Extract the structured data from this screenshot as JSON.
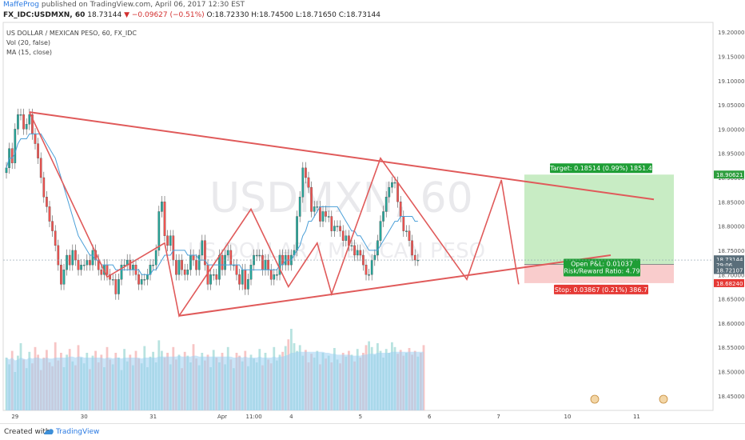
{
  "header": {
    "author": "MaffeProg",
    "published": "published on TradingView.com, April 06, 2017 12:30 EST",
    "symbol": "FX_IDC:USDMXN, 60",
    "price": "18.73144",
    "change": "▼ −0.09627 (−0.51%)",
    "ohlc": "O:18.72330 H:18.74500 L:18.71650 C:18.73144"
  },
  "legend": {
    "title": "US DOLLAR / MEXICAN PESO, 60, FX_IDC",
    "vol": "Vol (20, false)",
    "ma": "MA (15, close)"
  },
  "watermark": {
    "symbol": "USDMXN, 60",
    "name": "US DOLLAR / MEXICAN PESO"
  },
  "price_axis": {
    "ticks": [
      "19.20000",
      "19.15000",
      "19.10000",
      "19.05000",
      "19.00000",
      "18.95000",
      "18.90000",
      "18.85000",
      "18.80000",
      "18.75000",
      "18.70000",
      "18.65000",
      "18.60000",
      "18.55000",
      "18.50000",
      "18.45000"
    ],
    "markers": [
      {
        "label": "18.90621",
        "value": 18.90621,
        "color": "#2e9e3e"
      },
      {
        "label": "18.73144",
        "value": 18.73144,
        "color": "#5a6e7a"
      },
      {
        "label": "29:06",
        "value": 18.7205,
        "color": "#5a6e7a"
      },
      {
        "label": "18.72107",
        "value": 18.7095,
        "color": "#5a6e7a"
      },
      {
        "label": "18.68240",
        "value": 18.6824,
        "color": "#e53935"
      }
    ]
  },
  "time_axis": {
    "ticks": [
      {
        "label": "29",
        "i": 3
      },
      {
        "label": "30",
        "i": 27
      },
      {
        "label": "31",
        "i": 51
      },
      {
        "label": "Apr",
        "i": 75
      },
      {
        "label": "11:00",
        "i": 86
      },
      {
        "label": "4",
        "i": 99
      },
      {
        "label": "5",
        "i": 123
      },
      {
        "label": "6",
        "i": 147
      },
      {
        "label": "7",
        "i": 171
      },
      {
        "label": "10",
        "i": 195
      },
      {
        "label": "11",
        "i": 219
      }
    ]
  },
  "position_tool": {
    "target_label": "Target: 0.18514 (0.99%) 1851.4",
    "open_pl": "Open P&L: 0.01037",
    "risk_reward": "Risk/Reward Ratio: 4.79",
    "stop_label": "Stop: 0.03867 (0.21%) 386.7",
    "entry": 18.72107,
    "target": 18.90621,
    "stop": 18.6824
  },
  "colors": {
    "up": "#26a69a",
    "down": "#ef5350",
    "ma": "#4a9fd8",
    "pattern": "#e05a5a",
    "vol_up": "#b8e3e0",
    "vol_down": "#f7c5c5",
    "vol_ma": "#9dd0f3",
    "target_zone": "#c8ecc4",
    "stop_zone": "#f9cccc"
  },
  "footer": {
    "created_with": "Created with",
    "brand": "TradingView"
  },
  "chart_data": {
    "type": "candlestick",
    "x_axis": "hourly bars, Mar 28 – Apr 6, 2017",
    "ylim": [
      18.42,
      19.22
    ],
    "closes": [
      18.92,
      18.96,
      18.93,
      19.0,
      19.03,
      19.03,
      19.0,
      19.01,
      19.03,
      18.99,
      18.97,
      18.94,
      18.9,
      18.86,
      18.84,
      18.81,
      18.79,
      18.76,
      18.72,
      18.68,
      18.71,
      18.74,
      18.72,
      18.75,
      18.73,
      18.71,
      18.72,
      18.72,
      18.73,
      18.72,
      18.75,
      18.73,
      18.71,
      18.7,
      18.72,
      18.7,
      18.69,
      18.69,
      18.66,
      18.69,
      18.72,
      18.72,
      18.73,
      18.71,
      18.72,
      18.7,
      18.68,
      18.69,
      18.69,
      18.7,
      18.72,
      18.72,
      18.75,
      18.83,
      18.85,
      18.78,
      18.76,
      18.78,
      18.73,
      18.7,
      18.73,
      18.71,
      18.7,
      18.71,
      18.74,
      18.73,
      18.71,
      18.74,
      18.77,
      18.72,
      18.68,
      18.7,
      18.7,
      18.69,
      18.74,
      18.71,
      18.74,
      18.75,
      18.72,
      18.72,
      18.7,
      18.68,
      18.71,
      18.67,
      18.69,
      18.72,
      18.74,
      18.74,
      18.74,
      18.71,
      18.73,
      18.71,
      18.69,
      18.7,
      18.7,
      18.74,
      18.72,
      18.74,
      18.72,
      18.74,
      18.75,
      18.82,
      18.86,
      18.92,
      18.9,
      18.88,
      18.83,
      18.84,
      18.84,
      18.81,
      18.83,
      18.82,
      18.82,
      18.79,
      18.8,
      18.8,
      18.79,
      18.77,
      18.78,
      18.76,
      18.76,
      18.74,
      18.75,
      18.74,
      18.72,
      18.7,
      18.7,
      18.73,
      18.74,
      18.77,
      18.81,
      18.83,
      18.86,
      18.88,
      18.89,
      18.89,
      18.85,
      18.82,
      18.79,
      18.79,
      18.77,
      18.74,
      18.73,
      18.73
    ],
    "volume": [
      0.55,
      0.48,
      0.62,
      0.4,
      0.57,
      0.7,
      0.53,
      0.44,
      0.61,
      0.49,
      0.66,
      0.58,
      0.42,
      0.55,
      0.63,
      0.5,
      0.46,
      0.71,
      0.52,
      0.6,
      0.45,
      0.58,
      0.64,
      0.51,
      0.47,
      0.68,
      0.55,
      0.49,
      0.6,
      0.43,
      0.57,
      0.62,
      0.5,
      0.58,
      0.45,
      0.66,
      0.53,
      0.48,
      0.6,
      0.55,
      0.42,
      0.64,
      0.51,
      0.58,
      0.47,
      0.62,
      0.54,
      0.49,
      0.67,
      0.45,
      0.56,
      0.61,
      0.5,
      0.73,
      0.62,
      0.55,
      0.6,
      0.48,
      0.66,
      0.53,
      0.58,
      0.44,
      0.61,
      0.57,
      0.5,
      0.69,
      0.54,
      0.47,
      0.6,
      0.52,
      0.58,
      0.45,
      0.63,
      0.55,
      0.5,
      0.6,
      0.48,
      0.66,
      0.53,
      0.44,
      0.6,
      0.57,
      0.51,
      0.62,
      0.46,
      0.58,
      0.54,
      0.5,
      0.64,
      0.47,
      0.6,
      0.53,
      0.49,
      0.66,
      0.52,
      0.58,
      0.61,
      0.67,
      0.74,
      0.85,
      0.7,
      0.62,
      0.68,
      0.57,
      0.63,
      0.5,
      0.59,
      0.55,
      0.62,
      0.48,
      0.6,
      0.54,
      0.57,
      0.5,
      0.65,
      0.53,
      0.49,
      0.6,
      0.56,
      0.62,
      0.58,
      0.51,
      0.64,
      0.55,
      0.6,
      0.68,
      0.72,
      0.66,
      0.58,
      0.7,
      0.62,
      0.55,
      0.64,
      0.6,
      0.71,
      0.66,
      0.59,
      0.63,
      0.57,
      0.6,
      0.65,
      0.58,
      0.62,
      0.56,
      0.6,
      0.68
    ],
    "ma_15": [
      18.92,
      18.94,
      18.94,
      18.95,
      18.97,
      18.98,
      18.98,
      18.98,
      18.99,
      18.99,
      18.99,
      18.99,
      18.99,
      18.98,
      18.97,
      18.96,
      18.95,
      18.94,
      18.92,
      18.9,
      18.88,
      18.86,
      18.84,
      18.82,
      18.8,
      18.78,
      18.77,
      18.76,
      18.75,
      18.74,
      18.74,
      18.73,
      18.73,
      18.72,
      18.72,
      18.72,
      18.72,
      18.72,
      18.71,
      18.71,
      18.71,
      18.71,
      18.71,
      18.71,
      18.71,
      18.71,
      18.71,
      18.7,
      18.7,
      18.7,
      18.7,
      18.71,
      18.71,
      18.72,
      18.73,
      18.74,
      18.74,
      18.74,
      18.75,
      18.75,
      18.75,
      18.75,
      18.75,
      18.74,
      18.74,
      18.74,
      18.74,
      18.73,
      18.73,
      18.73,
      18.72,
      18.72,
      18.72,
      18.72,
      18.72,
      18.72,
      18.72,
      18.72,
      18.72,
      18.72,
      18.72,
      18.72,
      18.71,
      18.71,
      18.71,
      18.71,
      18.71,
      18.71,
      18.71,
      18.71,
      18.71,
      18.71,
      18.71,
      18.71,
      18.71,
      18.72,
      18.72,
      18.73,
      18.73,
      18.73,
      18.74,
      18.75,
      18.76,
      18.78,
      18.79,
      18.81,
      18.81,
      18.82,
      18.83,
      18.84,
      18.84,
      18.84,
      18.84,
      18.84,
      18.84,
      18.84,
      18.83,
      18.82,
      18.81,
      18.8,
      18.79,
      18.79,
      18.78,
      18.78,
      18.77,
      18.76,
      18.75,
      18.75,
      18.75,
      18.75,
      18.76,
      18.77,
      18.78,
      18.79,
      18.8,
      18.81,
      18.81,
      18.82,
      18.82,
      18.82,
      18.82,
      18.82,
      18.81,
      18.81
    ],
    "volume_ma": [
      0.55,
      0.53,
      0.55,
      0.52,
      0.53,
      0.55,
      0.54,
      0.53,
      0.55,
      0.54,
      0.55,
      0.55,
      0.54,
      0.54,
      0.55,
      0.54,
      0.54,
      0.55,
      0.55,
      0.55,
      0.55,
      0.55,
      0.56,
      0.56,
      0.55,
      0.56,
      0.56,
      0.55,
      0.55,
      0.55,
      0.55,
      0.55,
      0.55,
      0.55,
      0.54,
      0.55,
      0.55,
      0.54,
      0.55,
      0.55,
      0.54,
      0.55,
      0.55,
      0.55,
      0.55,
      0.55,
      0.55,
      0.54,
      0.55,
      0.55,
      0.55,
      0.55,
      0.55,
      0.56,
      0.56,
      0.56,
      0.56,
      0.56,
      0.56,
      0.56,
      0.57,
      0.56,
      0.56,
      0.56,
      0.56,
      0.57,
      0.57,
      0.56,
      0.56,
      0.56,
      0.56,
      0.56,
      0.56,
      0.56,
      0.56,
      0.56,
      0.56,
      0.56,
      0.56,
      0.55,
      0.55,
      0.56,
      0.55,
      0.56,
      0.55,
      0.55,
      0.55,
      0.55,
      0.56,
      0.55,
      0.55,
      0.55,
      0.55,
      0.56,
      0.55,
      0.56,
      0.56,
      0.57,
      0.58,
      0.6,
      0.6,
      0.61,
      0.61,
      0.61,
      0.61,
      0.61,
      0.61,
      0.61,
      0.61,
      0.61,
      0.61,
      0.6,
      0.6,
      0.59,
      0.59,
      0.58,
      0.58,
      0.58,
      0.58,
      0.58,
      0.57,
      0.57,
      0.57,
      0.57,
      0.58,
      0.58,
      0.59,
      0.59,
      0.59,
      0.6,
      0.6,
      0.6,
      0.6,
      0.6,
      0.61,
      0.61,
      0.61,
      0.61,
      0.61,
      0.61,
      0.61,
      0.61,
      0.61,
      0.61,
      0.61,
      0.61
    ],
    "trendlines": [
      {
        "name": "upper",
        "from": [
          8,
          19.035
        ],
        "to": [
          225,
          18.855
        ]
      },
      {
        "name": "lower",
        "from": [
          60,
          18.615
        ],
        "to": [
          210,
          18.74
        ]
      },
      {
        "name": "zigzag",
        "points": [
          [
            8,
            19.035
          ],
          [
            35,
            18.695
          ],
          [
            55,
            18.765
          ],
          [
            60,
            18.615
          ],
          [
            85,
            18.835
          ],
          [
            98,
            18.675
          ],
          [
            108,
            18.765
          ],
          [
            113,
            18.66
          ],
          [
            130,
            18.94
          ],
          [
            160,
            18.69
          ],
          [
            172,
            18.895
          ],
          [
            178,
            18.68
          ]
        ]
      }
    ]
  }
}
